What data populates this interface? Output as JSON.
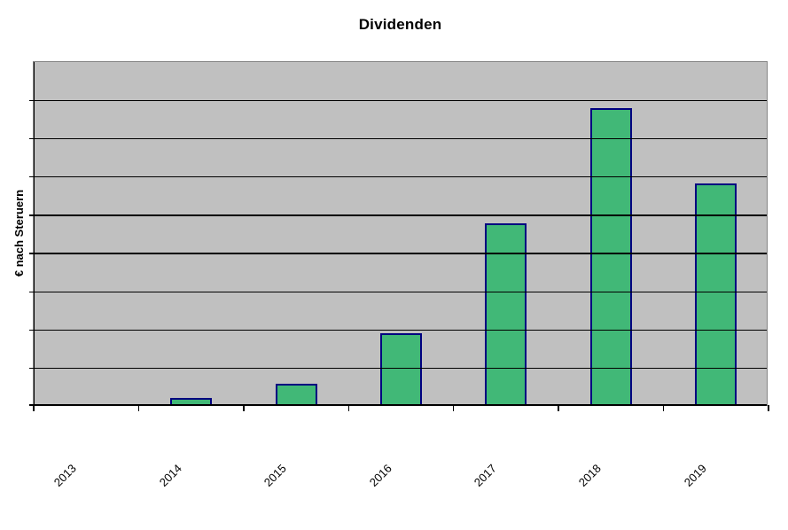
{
  "chart_data": {
    "type": "bar",
    "title": "Dividenden",
    "xlabel": "",
    "ylabel": "€ nach Steruern",
    "categories": [
      "2013",
      "2014",
      "2015",
      "2016",
      "2017",
      "2018",
      "2019"
    ],
    "values": [
      0,
      0.19,
      0.55,
      1.88,
      4.74,
      7.75,
      5.79
    ],
    "ylim": [
      0,
      9
    ],
    "y_gridline_interval": 1,
    "y_tick_labels_visible": false,
    "grid": "horizontal",
    "legend": "none",
    "x_label_rotation_deg": 45,
    "colors": {
      "bar_fill": "#41B877",
      "bar_border": "#000080",
      "plot_background": "#C0C0C0",
      "plot_border": "#858585",
      "gridline": "#000000",
      "axis_line": "#000000",
      "text": "#000000",
      "page_background": "#FFFFFF"
    }
  }
}
